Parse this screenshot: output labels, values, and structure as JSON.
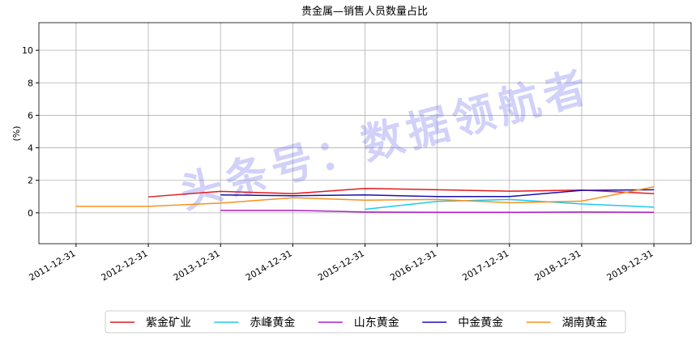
{
  "chart_data": {
    "type": "line",
    "title": "贵金属—销售人员数量占比",
    "y_label": "(%)",
    "watermark": "头条号：数据领航者",
    "categories": [
      "2011-12-31",
      "2012-12-31",
      "2013-12-31",
      "2014-12-31",
      "2015-12-31",
      "2016-12-31",
      "2017-12-31",
      "2018-12-31",
      "2019-12-31"
    ],
    "series": [
      {
        "name": "紫金矿业",
        "color": "#e41a1c",
        "values": [
          null,
          0.98,
          1.32,
          1.18,
          1.5,
          1.42,
          1.33,
          1.4,
          1.18
        ]
      },
      {
        "name": "赤峰黄金",
        "color": "#1ec8f0",
        "values": [
          null,
          null,
          null,
          null,
          0.22,
          0.7,
          0.82,
          0.55,
          0.35
        ]
      },
      {
        "name": "山东黄金",
        "color": "#b01ec8",
        "values": [
          null,
          null,
          0.15,
          0.15,
          0.05,
          0.03,
          0.03,
          0.05,
          0.03
        ]
      },
      {
        "name": "中金黄金",
        "color": "#1a0fb4",
        "values": [
          null,
          null,
          1.1,
          1.05,
          1.1,
          1.0,
          1.0,
          1.38,
          1.42
        ]
      },
      {
        "name": "湖南黄金",
        "color": "#f5921e",
        "values": [
          0.4,
          0.4,
          0.6,
          0.93,
          0.78,
          0.82,
          0.62,
          0.72,
          1.6
        ]
      }
    ],
    "ylim": [
      -1.9,
      11.7
    ],
    "yticks": [
      0,
      2,
      4,
      6,
      8,
      10
    ],
    "grid": true,
    "legend": "bottom"
  }
}
